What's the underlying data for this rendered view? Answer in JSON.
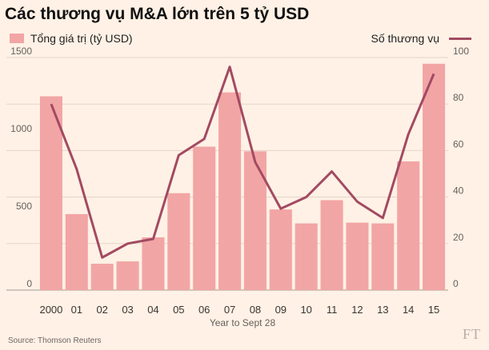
{
  "title": "Các thương vụ M&A lớn trên 5 tỷ USD",
  "source": "Source: Thomson Reuters",
  "logo": "FT",
  "chart_data": {
    "type": "bar+line",
    "title": "Các thương vụ M&A lớn trên 5 tỷ USD",
    "categories": [
      "2000",
      "01",
      "02",
      "03",
      "04",
      "05",
      "06",
      "07",
      "08",
      "09",
      "10",
      "11",
      "12",
      "13",
      "14",
      "15"
    ],
    "xlabel": "Year to Sept 28",
    "series": [
      {
        "name": "Tổng giá trị (tỷ USD)",
        "type": "bar",
        "axis": "left",
        "color": "#f2a5a5",
        "values": [
          1250,
          490,
          170,
          185,
          340,
          625,
          925,
          1275,
          895,
          520,
          430,
          580,
          435,
          430,
          830,
          1460
        ]
      },
      {
        "name": "Số thương vụ",
        "type": "line",
        "axis": "right",
        "color": "#a24a62",
        "values": [
          80,
          52,
          14,
          20,
          22,
          58,
          65,
          96,
          55,
          35,
          40,
          51,
          38,
          31,
          67,
          93
        ]
      }
    ],
    "ylim_left": [
      0,
      1500
    ],
    "yticks_left": [
      "0",
      "500",
      "1000",
      "1500"
    ],
    "ylim_right": [
      0,
      100
    ],
    "yticks_right": [
      "0",
      "20",
      "40",
      "60",
      "80",
      "100"
    ],
    "grid": true,
    "legend": "top"
  }
}
